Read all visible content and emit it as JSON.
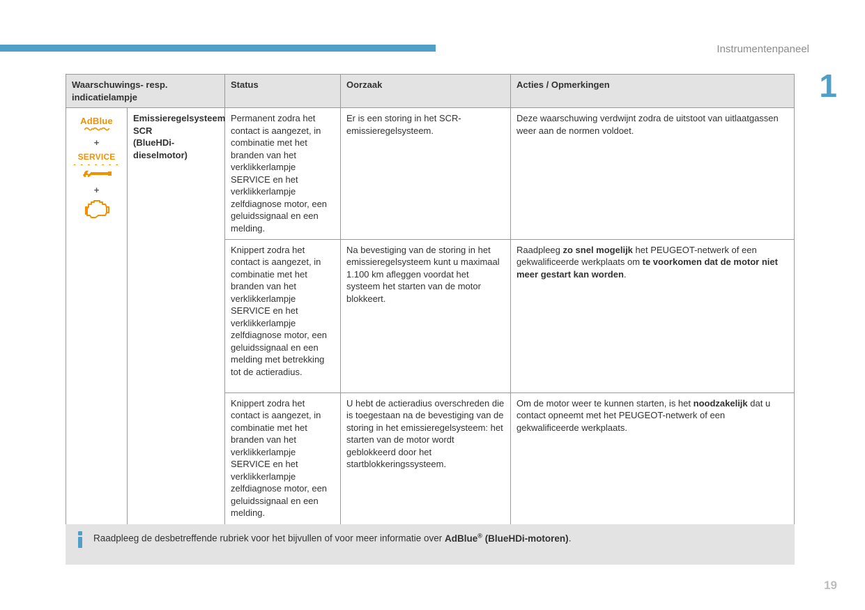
{
  "page": {
    "section_title": "Instrumentenpaneel",
    "chapter_number": "1",
    "page_number": "19",
    "accent_color": "#509fc8",
    "icon_color": "#f29100",
    "header_bg": "#e3e3e3",
    "border_color": "#999999"
  },
  "table": {
    "headers": {
      "warning": "Waarschuwings- resp. indicatielampje",
      "status": "Status",
      "cause": "Oorzaak",
      "actions": "Acties / Opmerkingen"
    },
    "indicator": {
      "adblue_label": "AdBlue",
      "service_label": "SERVICE",
      "plus": "+",
      "name_line1": "Emissieregelsysteem SCR",
      "name_line2": "(BlueHDi-dieselmotor)"
    },
    "rows": [
      {
        "status": "Permanent zodra het contact is aangezet, in combinatie met het branden van het verklikkerlampje SERVICE en het verklikkerlampje zelfdiagnose motor, een geluidssignaal en een melding.",
        "cause": "Er is een storing in het SCR-emissieregelsysteem.",
        "action_html": "Deze waarschuwing verdwijnt zodra de uitstoot van uitlaatgassen weer aan de normen voldoet."
      },
      {
        "status": "Knippert zodra het contact is aangezet, in combinatie met het branden van het verklikkerlampje SERVICE en het verklikkerlampje zelfdiagnose motor, een geluidssignaal en een melding met betrekking tot de actieradius.",
        "cause": "Na bevestiging van de storing in het emissieregelsysteem kunt u maximaal 1.100 km afleggen voordat het systeem het starten van de motor blokkeert.",
        "action_html": "Raadpleeg <b>zo snel mogelijk</b> het PEUGEOT-netwerk of een gekwalificeerde werkplaats om <b>te voorkomen dat de motor niet meer gestart kan worden</b>."
      },
      {
        "status": "Knippert zodra het contact is aangezet, in combinatie met het branden van het verklikkerlampje SERVICE en het verklikkerlampje zelfdiagnose motor, een geluidssignaal en een melding.",
        "cause": "U hebt de actieradius overschreden die is toegestaan na de bevestiging van de storing in het emissieregelsysteem: het starten van de motor wordt geblokkeerd door het startblokkeringssysteem.",
        "action_html": "Om de motor weer te kunnen starten, is het <b>noodzakelijk</b> dat u contact opneemt met het PEUGEOT-netwerk of een gekwalificeerde werkplaats."
      }
    ],
    "row_heights": [
      "170px",
      "220px",
      "192px"
    ]
  },
  "info_note": {
    "text_html": "Raadpleeg de desbetreffende rubriek voor het bijvullen of voor meer informatie over <b>AdBlue<span class='sup'>®</span> (BlueHDi-motoren)</b>."
  }
}
